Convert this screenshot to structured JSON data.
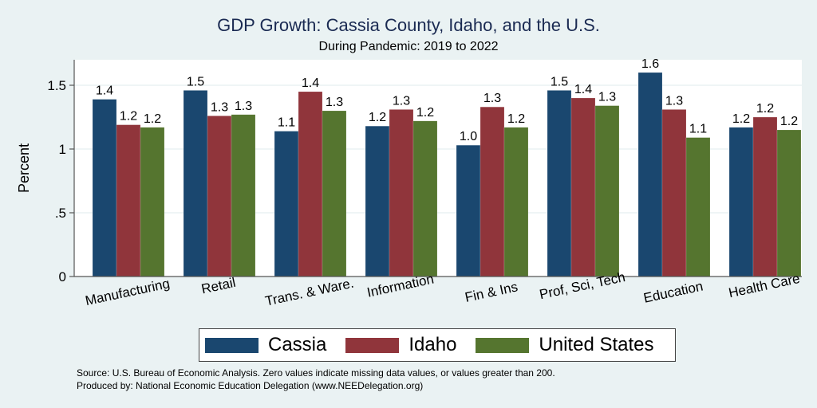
{
  "chart_data": {
    "type": "bar",
    "title": "GDP Growth: Cassia County, Idaho, and the U.S.",
    "subtitle": "During Pandemic: 2019 to 2022",
    "xlabel": "",
    "ylabel": "Percent",
    "ylim": [
      0,
      1.7
    ],
    "yticks": [
      0,
      0.5,
      1,
      1.5
    ],
    "ytick_labels": [
      "0",
      ".5",
      "1",
      "1.5"
    ],
    "grid": true,
    "legend_position": "bottom",
    "categories": [
      "Manufacturing",
      "Retail",
      "Trans. & Ware.",
      "Information",
      "Fin & Ins",
      "Prof, Sci, Tech",
      "Education",
      "Health Care"
    ],
    "series": [
      {
        "name": "Cassia",
        "color": "#1a476f",
        "values": [
          1.39,
          1.46,
          1.14,
          1.18,
          1.03,
          1.46,
          1.6,
          1.17
        ],
        "labels": [
          "1.4",
          "1.5",
          "1.1",
          "1.2",
          "1.0",
          "1.5",
          "1.6",
          "1.2"
        ]
      },
      {
        "name": "Idaho",
        "color": "#90353b",
        "values": [
          1.19,
          1.26,
          1.45,
          1.31,
          1.33,
          1.4,
          1.31,
          1.25
        ],
        "labels": [
          "1.2",
          "1.3",
          "1.4",
          "1.3",
          "1.3",
          "1.4",
          "1.3",
          "1.2"
        ]
      },
      {
        "name": "United States",
        "color": "#55752f",
        "values": [
          1.17,
          1.27,
          1.3,
          1.22,
          1.17,
          1.34,
          1.09,
          1.15
        ],
        "labels": [
          "1.2",
          "1.3",
          "1.3",
          "1.2",
          "1.2",
          "1.3",
          "1.1",
          "1.2"
        ]
      }
    ]
  },
  "notes": {
    "source": "Source: U.S. Bureau of Economic Analysis. Zero values indicate missing data values, or values greater than 200.",
    "produced_by": "Produced by: National Economic Education Delegation (www.NEEDelegation.org)"
  }
}
